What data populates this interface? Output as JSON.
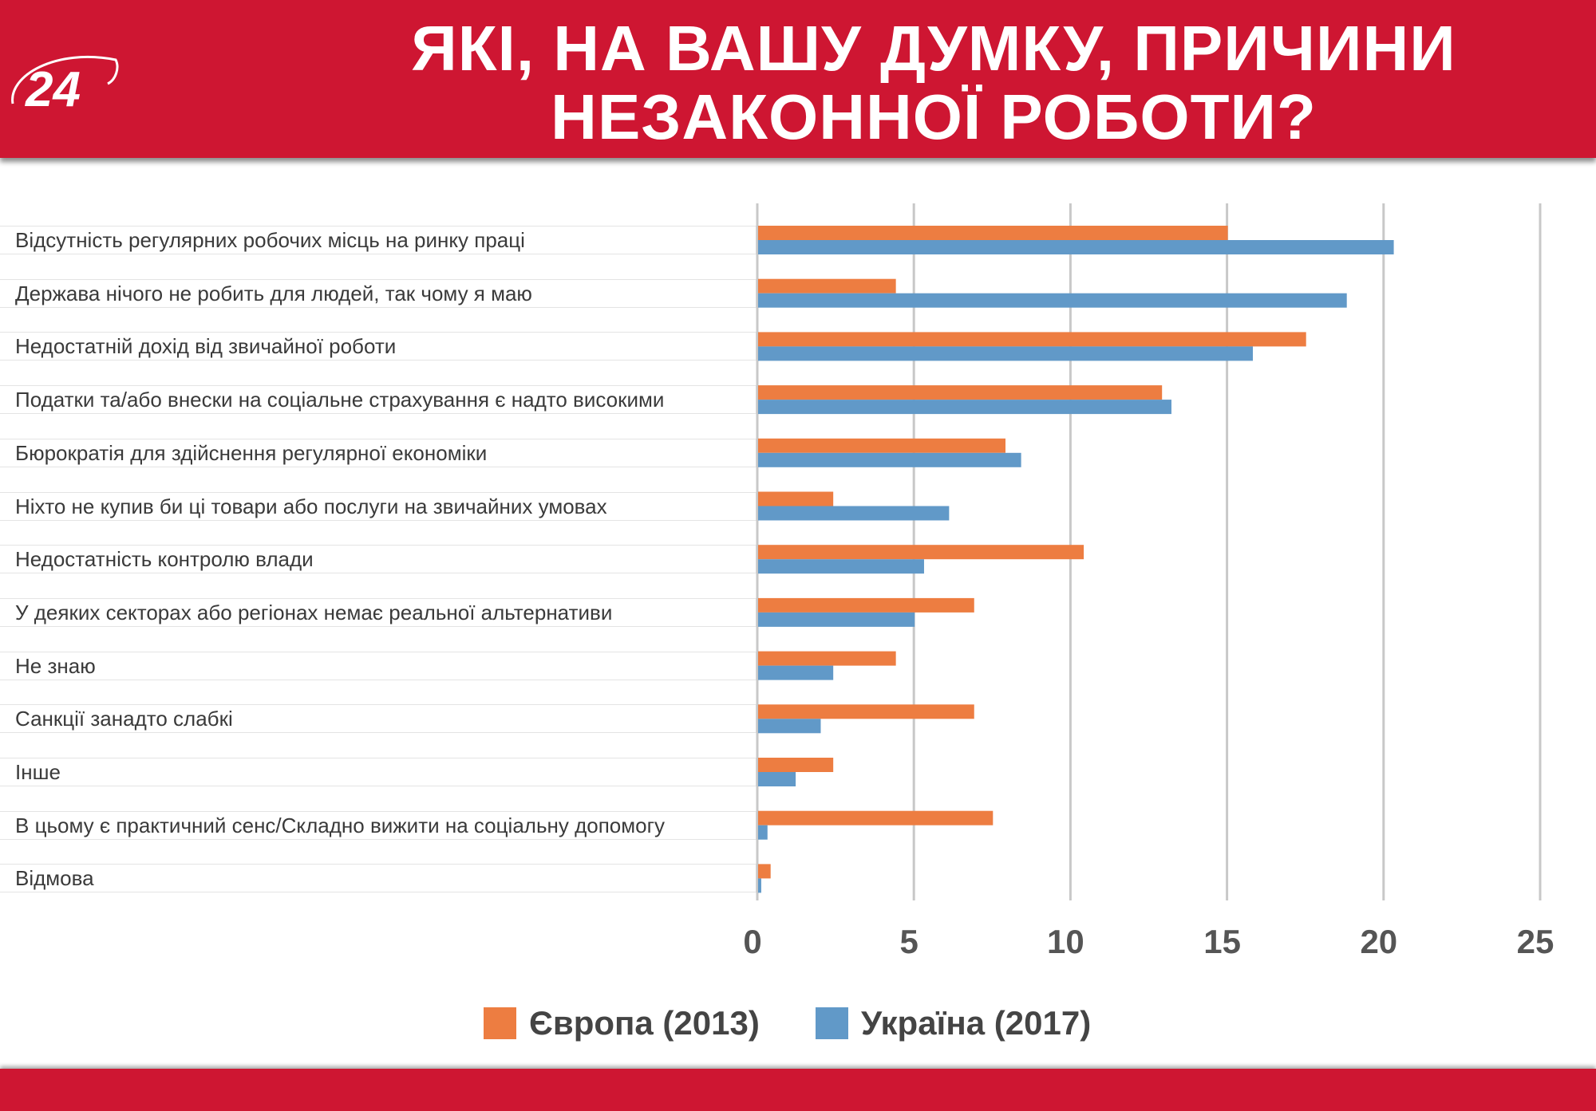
{
  "header": {
    "logo_text": "24",
    "title_line1": "ЯКІ, НА ВАШУ ДУМКУ, ПРИЧИНИ",
    "title_line2": "НЕЗАКОННОЇ РОБОТИ?"
  },
  "colors": {
    "header": "#CE1632",
    "europe": "#ED7D41",
    "ukraine": "#6199C8",
    "grid": "#C8C8C8"
  },
  "chart_data": {
    "type": "bar",
    "orientation": "horizontal",
    "title": "ЯКІ, НА ВАШУ ДУМКУ, ПРИЧИНИ НЕЗАКОННОЇ РОБОТИ?",
    "categories": [
      "Відсутність регулярних робочих місць на ринку праці",
      "Держава нічого не робить для людей, так чому я маю",
      "Недостатній дохід від звичайної роботи",
      "Податки та/або внески на соціальне страхування є надто високими",
      "Бюрократія для здійснення регулярної економіки",
      "Ніхто не купив би ці товари або послуги на звичайних умовах",
      "Недостатність контролю влади",
      "У деяких секторах або регіонах немає реальної альтернативи",
      "Не знаю",
      "Санкції занадто слабкі",
      "Інше",
      "В цьому є практичний сенс/Складно вижити на соціальну допомогу",
      "Відмова"
    ],
    "series": [
      {
        "name": "Європа (2013)",
        "color": "#ED7D41",
        "values": [
          15.0,
          4.4,
          17.5,
          12.9,
          7.9,
          2.4,
          10.4,
          6.9,
          4.4,
          6.9,
          2.4,
          7.5,
          0.4
        ]
      },
      {
        "name": "Україна (2017)",
        "color": "#6199C8",
        "values": [
          20.3,
          18.8,
          15.8,
          13.2,
          8.4,
          6.1,
          5.3,
          5.0,
          2.4,
          2.0,
          1.2,
          0.3,
          0.1
        ]
      }
    ],
    "xlim": [
      0,
      25
    ],
    "xticks": [
      "0",
      "5",
      "10",
      "15",
      "20",
      "25"
    ],
    "grid": true,
    "legend_position": "bottom"
  }
}
